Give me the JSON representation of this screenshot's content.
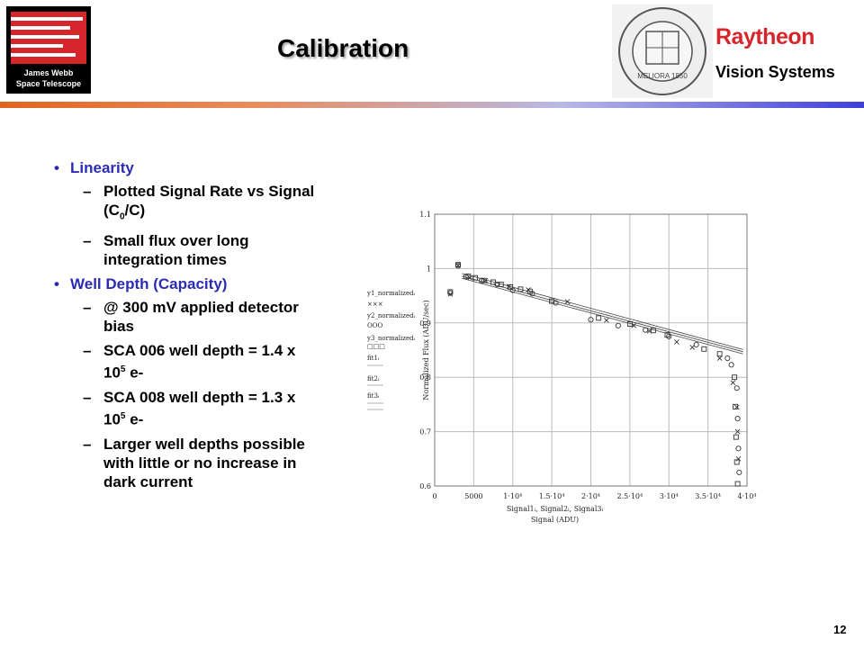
{
  "header": {
    "title": "Calibration",
    "jwst_logo_text": [
      "James Webb",
      "Space Telescope"
    ],
    "raytheon": "Raytheon",
    "vision_systems": "Vision Systems",
    "seal_text": "MELIORA 1850"
  },
  "bullets": [
    {
      "label": "Linearity",
      "subs": [
        {
          "parts": [
            "Plotted Signal Rate vs Signal (C",
            "0",
            "/C)"
          ]
        },
        {
          "parts": [
            "Small flux over long integration times"
          ]
        }
      ]
    },
    {
      "label": "Well Depth (Capacity)",
      "subs": [
        {
          "parts": [
            "@ 300 mV applied detector bias"
          ]
        },
        {
          "parts": [
            "SCA 006  well depth = 1.4 x 10",
            "5",
            " e-"
          ]
        },
        {
          "parts": [
            "SCA 008  well depth = 1.3 x 10",
            "5",
            " e-"
          ]
        },
        {
          "parts": [
            "Larger well depths possible with little or no increase in dark current"
          ]
        }
      ]
    }
  ],
  "chart_data": {
    "type": "scatter",
    "ylabel": "Normalized Flux (ADU/sec)",
    "xlabel_lines": [
      "Signal1ᵢ, Signal2ᵢ, Signal3ᵢ",
      "Signal (ADU)"
    ],
    "xlim": [
      0,
      40000
    ],
    "ylim": [
      0.6,
      1.1
    ],
    "x_ticks": [
      "0",
      "5000",
      "1·10⁴",
      "1.5·10⁴",
      "2·10⁴",
      "2.5·10⁴",
      "3·10⁴",
      "3.5·10⁴",
      "4·10⁴"
    ],
    "x_tick_values": [
      0,
      5000,
      10000,
      15000,
      20000,
      25000,
      30000,
      35000,
      40000
    ],
    "y_ticks": [
      "0.6",
      "0.7",
      "0.8",
      "0.9",
      "1",
      "1.1"
    ],
    "y_tick_values": [
      0.6,
      0.7,
      0.8,
      0.9,
      1.0,
      1.1
    ],
    "grid": true,
    "legend": [
      "y1_normalizedᵢ",
      "×××",
      "y2_normalizedᵢ",
      "OOO",
      "y3_normalizedᵢ",
      "□□□",
      "fit1ᵢ",
      "fit2ᵢ",
      "fit3ᵢ"
    ],
    "series": [
      {
        "name": "y1_normalized",
        "marker": "x",
        "points": [
          [
            2000,
            0.953
          ],
          [
            3000,
            1.006
          ],
          [
            4500,
            0.983
          ],
          [
            6500,
            0.978
          ],
          [
            9500,
            0.967
          ],
          [
            12000,
            0.961
          ],
          [
            17000,
            0.939
          ],
          [
            22000,
            0.905
          ],
          [
            25500,
            0.895
          ],
          [
            27500,
            0.885
          ],
          [
            31000,
            0.865
          ],
          [
            33000,
            0.855
          ],
          [
            36500,
            0.835
          ],
          [
            38200,
            0.79
          ],
          [
            38700,
            0.745
          ],
          [
            38800,
            0.7
          ],
          [
            38900,
            0.65
          ]
        ]
      },
      {
        "name": "y2_normalized",
        "marker": "o",
        "points": [
          [
            2000,
            0.955
          ],
          [
            3000,
            1.005
          ],
          [
            4000,
            0.985
          ],
          [
            6000,
            0.978
          ],
          [
            8000,
            0.971
          ],
          [
            10000,
            0.96
          ],
          [
            12500,
            0.954
          ],
          [
            15500,
            0.937
          ],
          [
            20000,
            0.906
          ],
          [
            23500,
            0.895
          ],
          [
            27000,
            0.887
          ],
          [
            30000,
            0.875
          ],
          [
            33500,
            0.86
          ],
          [
            37500,
            0.835
          ],
          [
            38000,
            0.823
          ],
          [
            38700,
            0.78
          ],
          [
            38800,
            0.724
          ],
          [
            38900,
            0.669
          ],
          [
            39000,
            0.625
          ]
        ]
      },
      {
        "name": "y3_normalized",
        "marker": "s",
        "points": [
          [
            2000,
            0.957
          ],
          [
            3000,
            1.007
          ],
          [
            4300,
            0.986
          ],
          [
            5200,
            0.983
          ],
          [
            6300,
            0.978
          ],
          [
            7500,
            0.975
          ],
          [
            8500,
            0.971
          ],
          [
            9700,
            0.966
          ],
          [
            11000,
            0.962
          ],
          [
            12200,
            0.958
          ],
          [
            15000,
            0.94
          ],
          [
            21000,
            0.909
          ],
          [
            25000,
            0.898
          ],
          [
            28000,
            0.886
          ],
          [
            29800,
            0.878
          ],
          [
            34500,
            0.852
          ],
          [
            36500,
            0.843
          ],
          [
            38400,
            0.8
          ],
          [
            38500,
            0.746
          ],
          [
            38600,
            0.69
          ],
          [
            38700,
            0.644
          ],
          [
            38800,
            0.604
          ]
        ]
      }
    ],
    "fits": [
      {
        "name": "fit1",
        "x": [
          3500,
          39500
        ],
        "y": [
          0.991,
          0.851
        ]
      },
      {
        "name": "fit2",
        "x": [
          3500,
          39500
        ],
        "y": [
          0.982,
          0.843
        ]
      },
      {
        "name": "fit3",
        "x": [
          3500,
          39500
        ],
        "y": [
          0.986,
          0.847
        ]
      }
    ]
  },
  "page_number": "12"
}
